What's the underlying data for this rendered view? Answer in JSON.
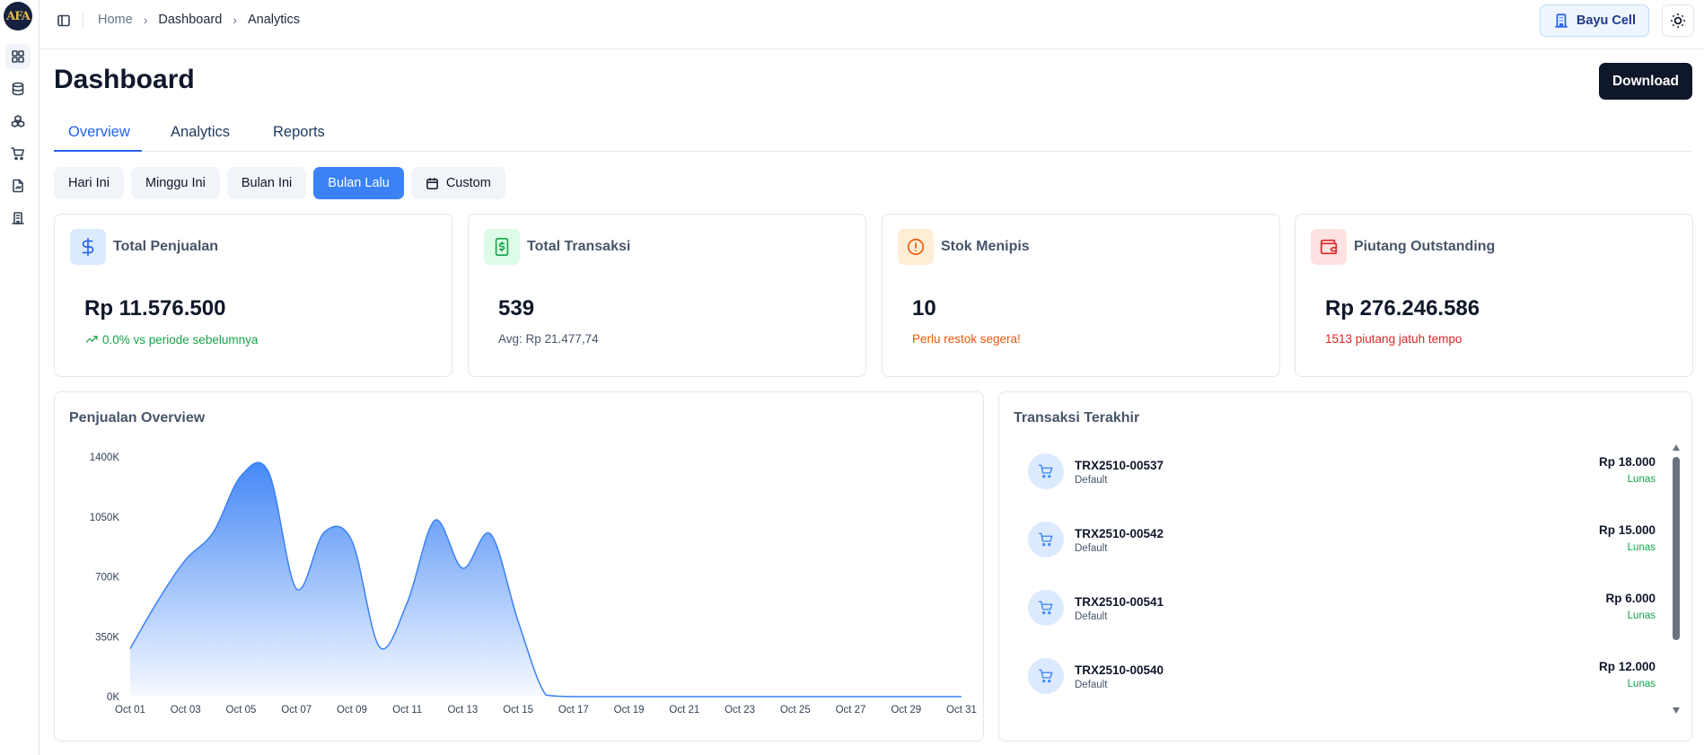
{
  "app": {
    "logo_text": "AFA"
  },
  "sidebar": {
    "items": [
      {
        "icon": "dashboard-grid-icon",
        "active": true
      },
      {
        "icon": "database-icon",
        "active": false
      },
      {
        "icon": "boxes-icon",
        "active": false
      },
      {
        "icon": "shopping-cart-icon",
        "active": false
      },
      {
        "icon": "file-report-icon",
        "active": false
      },
      {
        "icon": "building-icon",
        "active": false
      }
    ]
  },
  "breadcrumb": [
    "Home",
    "Dashboard",
    "Analytics"
  ],
  "header": {
    "store_label": "Bayu Cell"
  },
  "page": {
    "title": "Dashboard",
    "download_label": "Download"
  },
  "tabs": [
    {
      "label": "Overview",
      "active": true
    },
    {
      "label": "Analytics",
      "active": false
    },
    {
      "label": "Reports",
      "active": false
    }
  ],
  "filters": [
    {
      "label": "Hari Ini",
      "active": false
    },
    {
      "label": "Minggu Ini",
      "active": false
    },
    {
      "label": "Bulan Ini",
      "active": false
    },
    {
      "label": "Bulan Lalu",
      "active": true
    },
    {
      "label": "Custom",
      "active": false
    }
  ],
  "stats": [
    {
      "label": "Total Penjualan",
      "value": "Rp 11.576.500",
      "sub": "0.0% vs periode sebelumnya",
      "sub_color": "#16a34a",
      "icon": "dollar-icon",
      "icon_bg": "#dbeafe",
      "icon_color": "#2563eb"
    },
    {
      "label": "Total Transaksi",
      "value": "539",
      "sub": "Avg: Rp 21.477,74",
      "sub_color": "#475569",
      "icon": "banknote-icon",
      "icon_bg": "#dcfce7",
      "icon_color": "#16a34a"
    },
    {
      "label": "Stok Menipis",
      "value": "10",
      "sub": "Perlu restok segera!",
      "sub_color": "#ea580c",
      "icon": "alert-circle-icon",
      "icon_bg": "#ffedd5",
      "icon_color": "#ea580c"
    },
    {
      "label": "Piutang Outstanding",
      "value": "Rp 276.246.586",
      "sub": "1513 piutang jatuh tempo",
      "sub_color": "#dc2626",
      "icon": "wallet-icon",
      "icon_bg": "#fee2e2",
      "icon_color": "#dc2626"
    }
  ],
  "sales_chart": {
    "title": "Penjualan Overview"
  },
  "transactions": {
    "title": "Transaksi Terakhir",
    "items": [
      {
        "id": "TRX2510-00537",
        "sub": "Default",
        "amount": "Rp 18.000",
        "status": "Lunas"
      },
      {
        "id": "TRX2510-00542",
        "sub": "Default",
        "amount": "Rp 15.000",
        "status": "Lunas"
      },
      {
        "id": "TRX2510-00541",
        "sub": "Default",
        "amount": "Rp 6.000",
        "status": "Lunas"
      },
      {
        "id": "TRX2510-00540",
        "sub": "Default",
        "amount": "Rp 12.000",
        "status": "Lunas"
      }
    ]
  },
  "chart_data": {
    "type": "area",
    "title": "Penjualan Overview",
    "xlabel": "",
    "ylabel": "",
    "ylim": [
      0,
      1400000
    ],
    "y_ticks": [
      "0K",
      "350K",
      "700K",
      "1050K",
      "1400K"
    ],
    "x_tick_labels": [
      "Oct 01",
      "Oct 03",
      "Oct 05",
      "Oct 07",
      "Oct 09",
      "Oct 11",
      "Oct 13",
      "Oct 15",
      "Oct 17",
      "Oct 19",
      "Oct 21",
      "Oct 23",
      "Oct 25",
      "Oct 27",
      "Oct 29",
      "Oct 31"
    ],
    "x": [
      "Oct 01",
      "Oct 02",
      "Oct 03",
      "Oct 04",
      "Oct 05",
      "Oct 06",
      "Oct 07",
      "Oct 08",
      "Oct 09",
      "Oct 10",
      "Oct 11",
      "Oct 12",
      "Oct 13",
      "Oct 14",
      "Oct 15",
      "Oct 16",
      "Oct 17",
      "Oct 18",
      "Oct 19",
      "Oct 20",
      "Oct 21",
      "Oct 22",
      "Oct 23",
      "Oct 24",
      "Oct 25",
      "Oct 26",
      "Oct 27",
      "Oct 28",
      "Oct 29",
      "Oct 30",
      "Oct 31"
    ],
    "series": [
      {
        "values": [
          280000,
          560000,
          800000,
          960000,
          1290000,
          1310000,
          630000,
          960000,
          910000,
          290000,
          550000,
          1030000,
          750000,
          950000,
          440000,
          10000,
          0,
          0,
          0,
          0,
          0,
          0,
          0,
          0,
          0,
          0,
          0,
          0,
          0,
          0,
          0
        ]
      }
    ],
    "grid": false,
    "legend": "none",
    "color": "#3b82f6"
  }
}
